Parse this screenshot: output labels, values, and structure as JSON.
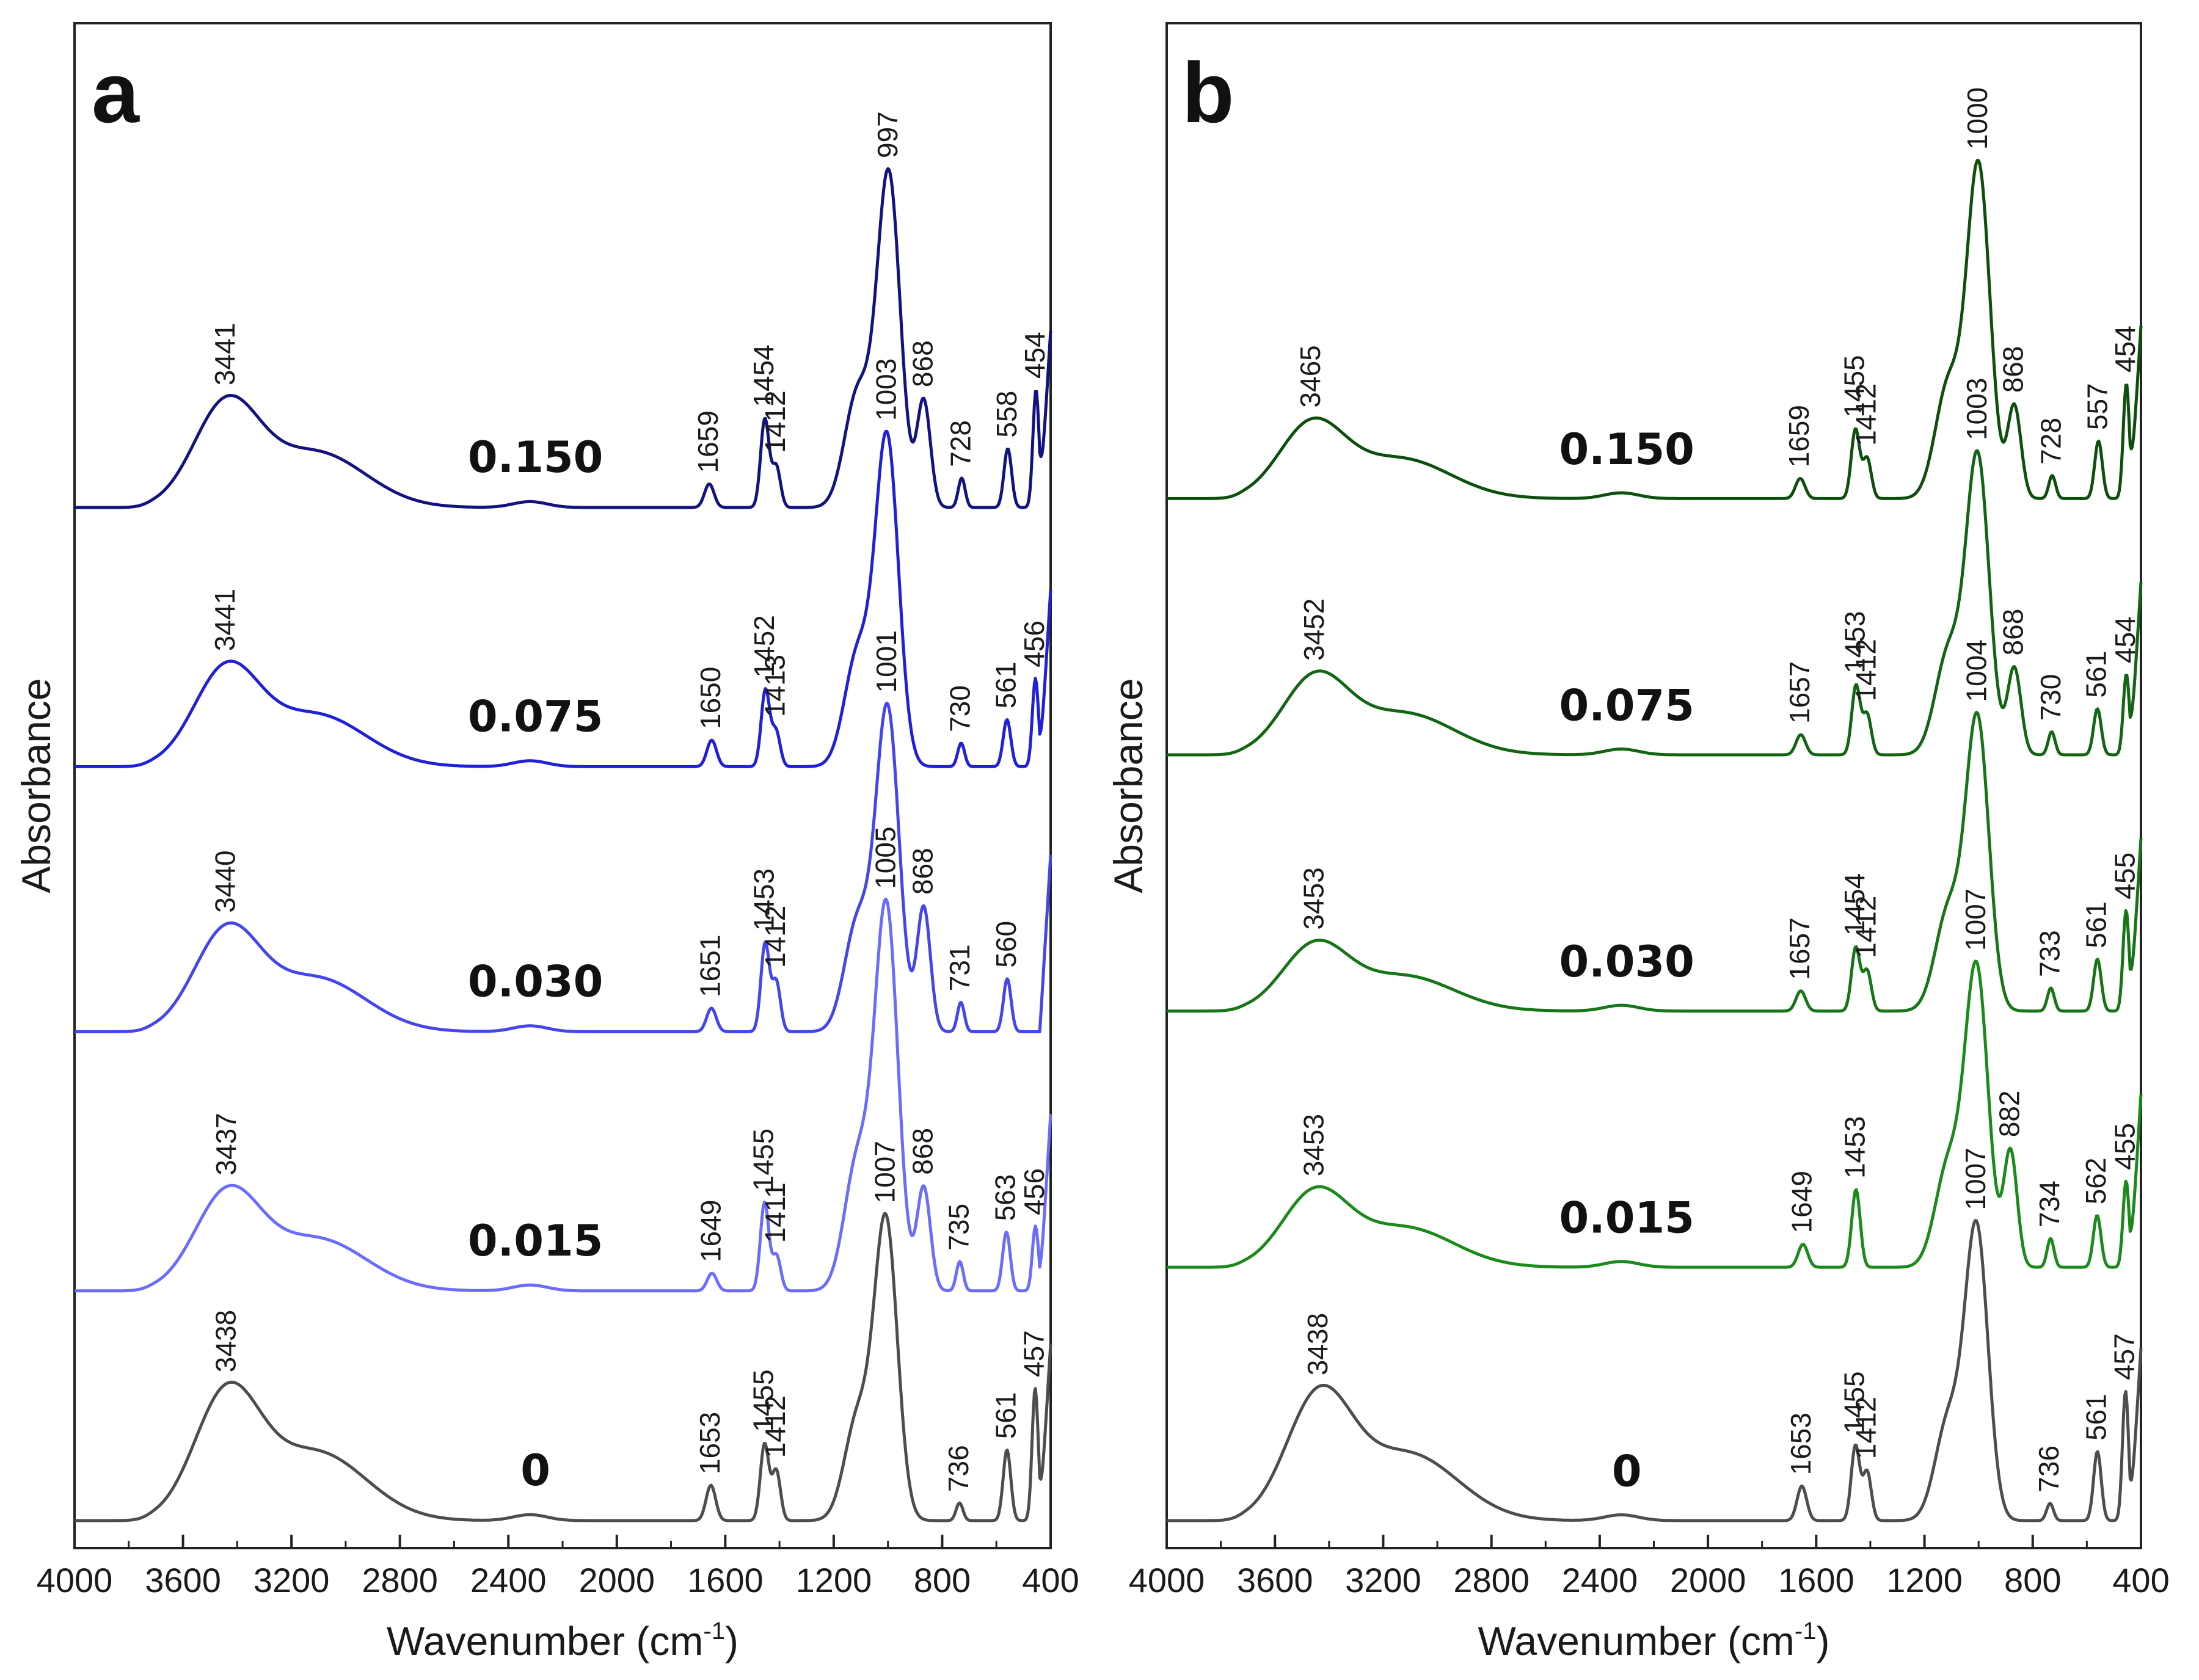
{
  "chart_data": [
    {
      "type": "line",
      "panel": "a",
      "xlabel": "Wavenumber (cm",
      "xlabel_sup": "-1",
      "xlabel_close": ")",
      "ylabel": "Absorbance",
      "xlim": [
        4000,
        400
      ],
      "xticks": [
        4000,
        3600,
        3200,
        2800,
        2400,
        2000,
        1600,
        1200,
        800,
        400
      ],
      "series": [
        {
          "name": "0",
          "color": "#4d4d4d",
          "baseline": 0.0,
          "peaks": [
            [
              3438,
              0.42
            ],
            [
              1653,
              0.12
            ],
            [
              1455,
              0.26
            ],
            [
              1412,
              0.17
            ],
            [
              1007,
              1.0
            ],
            [
              736,
              0.06
            ],
            [
              561,
              0.24
            ],
            [
              457,
              0.45
            ]
          ],
          "labels": [
            "3438",
            "1653",
            "1455",
            "1412",
            "1007",
            "736",
            "561",
            "457"
          ]
        },
        {
          "name": "0.015",
          "color": "#6b6bff",
          "baseline": 0.78,
          "peaks": [
            [
              3437,
              0.32
            ],
            [
              1649,
              0.06
            ],
            [
              1455,
              0.3
            ],
            [
              1411,
              0.12
            ],
            [
              1005,
              1.28
            ],
            [
              868,
              0.35
            ],
            [
              735,
              0.1
            ],
            [
              563,
              0.2
            ],
            [
              456,
              0.22
            ]
          ],
          "labels": [
            "3437",
            "1649",
            "1455",
            "1411",
            "1005",
            "868",
            "735",
            "563",
            "456"
          ]
        },
        {
          "name": "0.030",
          "color": "#4545f0",
          "baseline": 1.66,
          "peaks": [
            [
              3440,
              0.33
            ],
            [
              1651,
              0.08
            ],
            [
              1453,
              0.3
            ],
            [
              1412,
              0.17
            ],
            [
              1001,
              1.08
            ],
            [
              868,
              0.42
            ],
            [
              731,
              0.1
            ],
            [
              560,
              0.18
            ]
          ],
          "labels": [
            "3440",
            "1651",
            "1453",
            "1412",
            "1001",
            "868",
            "731",
            "560"
          ]
        },
        {
          "name": "0.075",
          "color": "#2020d8",
          "baseline": 2.56,
          "peaks": [
            [
              3441,
              0.32
            ],
            [
              1650,
              0.09
            ],
            [
              1452,
              0.26
            ],
            [
              1413,
              0.12
            ],
            [
              1003,
              1.1
            ],
            [
              730,
              0.08
            ],
            [
              561,
              0.16
            ],
            [
              456,
              0.3
            ]
          ],
          "labels": [
            "3441",
            "1650",
            "1452",
            "1413",
            "1003",
            "730",
            "561",
            "456"
          ]
        },
        {
          "name": "0.150",
          "color": "#121280",
          "baseline": 3.44,
          "peaks": [
            [
              3441,
              0.34
            ],
            [
              1659,
              0.08
            ],
            [
              1454,
              0.3
            ],
            [
              1412,
              0.14
            ],
            [
              997,
              1.12
            ],
            [
              868,
              0.36
            ],
            [
              728,
              0.1
            ],
            [
              558,
              0.2
            ],
            [
              454,
              0.4
            ]
          ],
          "labels": [
            "3441",
            "1659",
            "1454",
            "1412",
            "997",
            "868",
            "728",
            "558",
            "454"
          ]
        }
      ]
    },
    {
      "type": "line",
      "panel": "b",
      "xlabel": "Wavenumber (cm",
      "xlabel_sup": "-1",
      "xlabel_close": ")",
      "ylabel": "Absorbance",
      "xlim": [
        4000,
        400
      ],
      "xticks": [
        4000,
        3600,
        3200,
        2800,
        2400,
        2000,
        1600,
        1200,
        800,
        400
      ],
      "series": [
        {
          "name": "0",
          "color": "#4d4d4d",
          "baseline": 0.0,
          "peaks": [
            [
              3438,
              0.42
            ],
            [
              1653,
              0.12
            ],
            [
              1455,
              0.26
            ],
            [
              1412,
              0.17
            ],
            [
              1007,
              1.0
            ],
            [
              736,
              0.06
            ],
            [
              561,
              0.24
            ],
            [
              457,
              0.45
            ]
          ],
          "labels": [
            "3438",
            "1653",
            "1455",
            "1412",
            "1007",
            "736",
            "561",
            "457"
          ]
        },
        {
          "name": "0.015",
          "color": "#1a8a1a",
          "baseline": 0.88,
          "peaks": [
            [
              3453,
              0.25
            ],
            [
              1649,
              0.08
            ],
            [
              1453,
              0.27
            ],
            [
              1007,
              1.02
            ],
            [
              882,
              0.4
            ],
            [
              734,
              0.1
            ],
            [
              562,
              0.18
            ],
            [
              455,
              0.3
            ]
          ],
          "labels": [
            "3453",
            "1649",
            "1453",
            "1007",
            "882",
            "734",
            "562",
            "455"
          ]
        },
        {
          "name": "0.030",
          "color": "#167516",
          "baseline": 1.77,
          "peaks": [
            [
              3453,
              0.22
            ],
            [
              1657,
              0.07
            ],
            [
              1454,
              0.22
            ],
            [
              1412,
              0.14
            ],
            [
              1004,
              1.0
            ],
            [
              733,
              0.08
            ],
            [
              561,
              0.18
            ],
            [
              455,
              0.35
            ]
          ],
          "labels": [
            "3453",
            "1657",
            "1454",
            "1412",
            "1004",
            "733",
            "561",
            "455"
          ]
        },
        {
          "name": "0.075",
          "color": "#126512",
          "baseline": 2.66,
          "peaks": [
            [
              3452,
              0.26
            ],
            [
              1657,
              0.07
            ],
            [
              1453,
              0.24
            ],
            [
              1412,
              0.14
            ],
            [
              1003,
              1.02
            ],
            [
              868,
              0.3
            ],
            [
              730,
              0.08
            ],
            [
              561,
              0.16
            ],
            [
              454,
              0.28
            ]
          ],
          "labels": [
            "3452",
            "1657",
            "1453",
            "1412",
            "1003",
            "868",
            "730",
            "561",
            "454"
          ]
        },
        {
          "name": "0.150",
          "color": "#0d4f0d",
          "baseline": 3.55,
          "peaks": [
            [
              3465,
              0.25
            ],
            [
              1659,
              0.07
            ],
            [
              1455,
              0.24
            ],
            [
              1412,
              0.14
            ],
            [
              1000,
              1.14
            ],
            [
              868,
              0.32
            ],
            [
              728,
              0.08
            ],
            [
              557,
              0.2
            ],
            [
              454,
              0.4
            ]
          ],
          "labels": [
            "3465",
            "1659",
            "1455",
            "1412",
            "1000",
            "868",
            "728",
            "557",
            "454"
          ]
        }
      ]
    }
  ]
}
